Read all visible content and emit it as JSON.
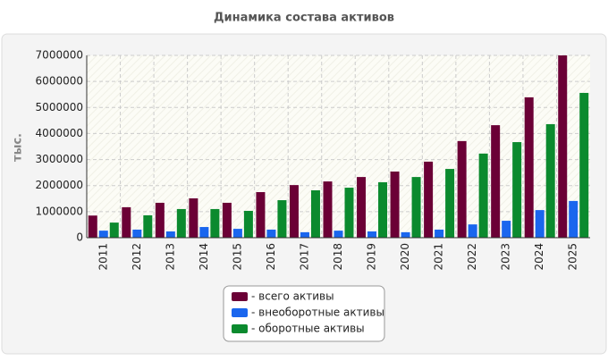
{
  "chart_data": {
    "type": "bar",
    "title": "Динамика состава активов",
    "y_label": "тыс.",
    "categories": [
      "2011",
      "2012",
      "2013",
      "2014",
      "2015",
      "2016",
      "2017",
      "2018",
      "2019",
      "2020",
      "2021",
      "2022",
      "2023",
      "2024",
      "2025"
    ],
    "series": [
      {
        "name": "- всего активы",
        "color": "#6b0036",
        "values": [
          850000,
          1170000,
          1340000,
          1510000,
          1340000,
          1750000,
          2020000,
          2160000,
          2330000,
          2540000,
          2920000,
          3710000,
          4320000,
          5390000,
          7000000
        ]
      },
      {
        "name": "- внеоборотные активы",
        "color": "#1a66ee",
        "values": [
          270000,
          310000,
          240000,
          410000,
          340000,
          310000,
          210000,
          270000,
          240000,
          210000,
          310000,
          510000,
          650000,
          1060000,
          1410000
        ]
      },
      {
        "name": "- оборотные активы",
        "color": "#0b8a2e",
        "values": [
          580000,
          860000,
          1100000,
          1100000,
          1030000,
          1440000,
          1820000,
          1920000,
          2130000,
          2330000,
          2640000,
          3230000,
          3670000,
          4360000,
          5560000
        ]
      }
    ],
    "ylim": [
      0,
      7000000
    ],
    "yticks": [
      0,
      1000000,
      2000000,
      3000000,
      4000000,
      5000000,
      6000000,
      7000000
    ],
    "grid": true
  }
}
